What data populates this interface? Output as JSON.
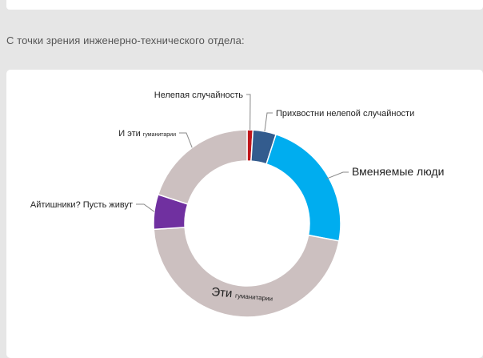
{
  "heading": "С точки зрения инженерно-технического отдела:",
  "colors": {
    "page_bg": "#e6e6e6",
    "card_bg": "#ffffff",
    "leader": "#888888"
  },
  "chart_data": {
    "type": "pie",
    "donut": true,
    "title": "",
    "legend": "none",
    "slices": [
      {
        "label": "Нелепая случайность",
        "value": 1,
        "color": "#c0161b"
      },
      {
        "label": "Прихвостни нелепой случайности",
        "value": 4,
        "color": "#335c8e"
      },
      {
        "label": "Вменяемые люди",
        "value": 23,
        "color": "#00adef"
      },
      {
        "label": "Эти",
        "label_small": "гуманитарии",
        "value": 46,
        "color": "#ccc0c0"
      },
      {
        "label": "Айтишники? Пусть живут",
        "value": 6,
        "color": "#7030a0"
      },
      {
        "label": "И эти",
        "label_small": "гуманитарии",
        "value": 20,
        "color": "#ccc0c0"
      }
    ]
  }
}
